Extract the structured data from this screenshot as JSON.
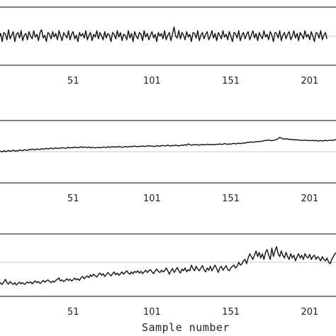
{
  "chart_data": [
    {
      "type": "line",
      "xlabel": "",
      "x_ticks": [
        "51",
        "101",
        "151",
        "201"
      ],
      "x_range": [
        1,
        215
      ],
      "baseline": 0,
      "ylim": [
        -1.6,
        1.6
      ],
      "series_style": {
        "color": "#111111",
        "reference_line_color": "#c8c8c8"
      },
      "samples": [
        0.05,
        -0.25,
        0.3,
        -0.1,
        0.15,
        -0.3,
        0.2,
        0.1,
        -0.2,
        0.35,
        -0.15,
        0.05,
        0.25,
        -0.3,
        0.1,
        0.2,
        -0.1,
        0.3,
        -0.25,
        0.05,
        0.15,
        -0.2,
        0.25,
        0.0,
        -0.15,
        0.3,
        -0.05,
        0.1,
        -0.25,
        0.2,
        0.35,
        -0.1,
        0.05,
        -0.3,
        0.2,
        0.1,
        -0.15,
        0.25,
        -0.05,
        0.15,
        -0.2,
        0.3,
        0.0,
        -0.25,
        0.2,
        0.05,
        -0.1,
        0.3,
        -0.2,
        0.1,
        0.25,
        -0.15,
        0.05,
        -0.3,
        0.2,
        0.0,
        0.15,
        -0.1,
        0.3,
        -0.2,
        0.05,
        0.2,
        -0.25,
        0.1,
        -0.05,
        0.3,
        -0.15,
        0.2,
        0.0,
        -0.2,
        0.25,
        -0.1,
        0.15,
        0.05,
        -0.3,
        0.2,
        0.1,
        -0.15,
        0.3,
        -0.05,
        0.2,
        -0.25,
        0.1,
        0.05,
        -0.2,
        0.3,
        -0.1,
        0.15,
        -0.3,
        0.25,
        0.0,
        -0.15,
        0.2,
        0.1,
        -0.25,
        0.3,
        -0.05,
        0.15,
        -0.2,
        0.05,
        0.25,
        -0.1,
        0.1,
        -0.3,
        0.2,
        0.0,
        0.15,
        -0.15,
        0.3,
        -0.2,
        0.05,
        0.2,
        -0.25,
        0.1,
        0.5,
        0.0,
        -0.1,
        0.3,
        -0.15,
        0.2,
        0.05,
        -0.2,
        0.25,
        -0.05,
        0.1,
        -0.3,
        0.2,
        0.15,
        -0.1,
        0.3,
        -0.25,
        0.05,
        0.2,
        -0.15,
        0.1,
        0.25,
        -0.2,
        0.0,
        0.3,
        -0.1,
        0.15,
        -0.25,
        0.2,
        0.05,
        -0.15,
        0.3,
        -0.05,
        0.1,
        -0.2,
        0.25,
        0.0,
        -0.3,
        0.2,
        0.15,
        -0.1,
        0.3,
        -0.25,
        0.05,
        0.2,
        -0.15,
        0.1,
        0.25,
        -0.2,
        0.05,
        0.3,
        -0.1,
        0.15,
        -0.25,
        0.2,
        0.0,
        -0.15,
        0.3,
        -0.05,
        0.1,
        -0.2,
        0.25,
        0.05,
        -0.3,
        0.2,
        0.15,
        -0.1,
        0.3,
        -0.25,
        0.05,
        0.2,
        -0.15,
        0.1,
        0.25,
        -0.2,
        0.0,
        0.3,
        -0.1,
        0.15,
        -0.25,
        0.2,
        0.05,
        -0.15,
        0.3,
        -0.05,
        0.1,
        -0.2,
        0.25,
        0.0,
        -0.3,
        0.2,
        0.15,
        -0.1,
        0.3,
        -0.2,
        0.05,
        0.2,
        -0.15
      ]
    },
    {
      "type": "line",
      "xlabel": "",
      "x_ticks": [
        "51",
        "101",
        "151",
        "201"
      ],
      "x_range": [
        1,
        215
      ],
      "baseline": 0,
      "ylim": [
        -1.2,
        1.2
      ],
      "series_style": {
        "color": "#111111",
        "reference_line_color": "#c8c8c8"
      },
      "samples": [
        0.0,
        0.03,
        -0.02,
        0.01,
        0.02,
        -0.01,
        0.04,
        0.0,
        0.02,
        0.05,
        0.01,
        0.03,
        0.06,
        0.02,
        0.04,
        0.03,
        0.07,
        0.05,
        0.04,
        0.08,
        0.06,
        0.05,
        0.09,
        0.07,
        0.1,
        0.08,
        0.07,
        0.11,
        0.09,
        0.08,
        0.12,
        0.1,
        0.11,
        0.13,
        0.1,
        0.12,
        0.14,
        0.11,
        0.13,
        0.15,
        0.12,
        0.14,
        0.13,
        0.16,
        0.14,
        0.13,
        0.15,
        0.17,
        0.14,
        0.16,
        0.15,
        0.18,
        0.16,
        0.15,
        0.17,
        0.19,
        0.16,
        0.18,
        0.17,
        0.16,
        0.18,
        0.15,
        0.17,
        0.16,
        0.14,
        0.16,
        0.17,
        0.15,
        0.16,
        0.18,
        0.17,
        0.16,
        0.19,
        0.17,
        0.18,
        0.2,
        0.17,
        0.19,
        0.18,
        0.2,
        0.19,
        0.17,
        0.18,
        0.2,
        0.19,
        0.18,
        0.21,
        0.19,
        0.2,
        0.22,
        0.2,
        0.19,
        0.21,
        0.2,
        0.22,
        0.21,
        0.2,
        0.22,
        0.23,
        0.21,
        0.22,
        0.2,
        0.21,
        0.23,
        0.22,
        0.21,
        0.23,
        0.24,
        0.22,
        0.23,
        0.25,
        0.23,
        0.22,
        0.24,
        0.23,
        0.25,
        0.24,
        0.22,
        0.24,
        0.26,
        0.24,
        0.27,
        0.25,
        0.3,
        0.27,
        0.25,
        0.26,
        0.28,
        0.26,
        0.27,
        0.25,
        0.27,
        0.28,
        0.26,
        0.27,
        0.29,
        0.27,
        0.28,
        0.26,
        0.28,
        0.27,
        0.29,
        0.28,
        0.3,
        0.28,
        0.29,
        0.31,
        0.3,
        0.28,
        0.3,
        0.29,
        0.31,
        0.32,
        0.3,
        0.31,
        0.33,
        0.31,
        0.32,
        0.34,
        0.33,
        0.35,
        0.37,
        0.36,
        0.38,
        0.36,
        0.37,
        0.39,
        0.38,
        0.4,
        0.39,
        0.41,
        0.42,
        0.44,
        0.43,
        0.45,
        0.44,
        0.42,
        0.43,
        0.45,
        0.47,
        0.5,
        0.55,
        0.52,
        0.5,
        0.48,
        0.5,
        0.49,
        0.47,
        0.48,
        0.46,
        0.47,
        0.45,
        0.46,
        0.44,
        0.45,
        0.43,
        0.44,
        0.45,
        0.43,
        0.44,
        0.42,
        0.43,
        0.44,
        0.42,
        0.43,
        0.41,
        0.42,
        0.43,
        0.41,
        0.42,
        0.44,
        0.42,
        0.43,
        0.45,
        0.43,
        0.44,
        0.46,
        0.45,
        0.47
      ]
    },
    {
      "type": "line",
      "xlabel": "Sample number",
      "x_ticks": [
        "51",
        "101",
        "151",
        "201"
      ],
      "x_range": [
        1,
        215
      ],
      "baseline": 0,
      "ylim": [
        -1.2,
        1.0
      ],
      "series_style": {
        "color": "#111111",
        "reference_line_color": "#c8c8c8"
      },
      "samples": [
        -0.75,
        -0.7,
        -0.8,
        -0.68,
        -0.74,
        -0.78,
        -0.7,
        -0.6,
        -0.72,
        -0.77,
        -0.68,
        -0.74,
        -0.78,
        -0.72,
        -0.8,
        -0.75,
        -0.7,
        -0.76,
        -0.72,
        -0.78,
        -0.74,
        -0.7,
        -0.73,
        -0.69,
        -0.76,
        -0.7,
        -0.66,
        -0.72,
        -0.68,
        -0.75,
        -0.7,
        -0.64,
        -0.7,
        -0.66,
        -0.62,
        -0.68,
        -0.72,
        -0.66,
        -0.7,
        -0.64,
        -0.6,
        -0.55,
        -0.66,
        -0.62,
        -0.68,
        -0.64,
        -0.58,
        -0.64,
        -0.6,
        -0.66,
        -0.62,
        -0.56,
        -0.62,
        -0.58,
        -0.64,
        -0.55,
        -0.5,
        -0.58,
        -0.52,
        -0.48,
        -0.54,
        -0.44,
        -0.5,
        -0.42,
        -0.48,
        -0.52,
        -0.44,
        -0.38,
        -0.46,
        -0.4,
        -0.5,
        -0.44,
        -0.36,
        -0.42,
        -0.48,
        -0.4,
        -0.34,
        -0.44,
        -0.38,
        -0.46,
        -0.4,
        -0.34,
        -0.42,
        -0.36,
        -0.3,
        -0.38,
        -0.42,
        -0.34,
        -0.4,
        -0.32,
        -0.36,
        -0.3,
        -0.38,
        -0.32,
        -0.4,
        -0.34,
        -0.28,
        -0.36,
        -0.3,
        -0.26,
        -0.34,
        -0.4,
        -0.3,
        -0.24,
        -0.32,
        -0.36,
        -0.28,
        -0.34,
        -0.3,
        -0.2,
        -0.3,
        -0.42,
        -0.3,
        -0.22,
        -0.36,
        -0.28,
        -0.18,
        -0.3,
        -0.38,
        -0.24,
        -0.3,
        -0.2,
        -0.34,
        -0.26,
        -0.3,
        -0.1,
        -0.22,
        -0.3,
        -0.14,
        -0.24,
        -0.3,
        -0.2,
        -0.12,
        -0.26,
        -0.34,
        -0.2,
        -0.28,
        -0.14,
        -0.3,
        -0.2,
        -0.1,
        -0.22,
        -0.36,
        -0.2,
        -0.14,
        -0.28,
        -0.2,
        -0.12,
        -0.26,
        -0.3,
        -0.2,
        -0.14,
        -0.1,
        -0.2,
        -0.14,
        0.0,
        -0.1,
        -0.06,
        0.05,
        0.1,
        -0.05,
        0.15,
        0.3,
        0.2,
        0.1,
        0.25,
        0.4,
        0.2,
        0.35,
        0.15,
        0.3,
        0.1,
        0.35,
        0.45,
        0.25,
        0.1,
        0.5,
        0.2,
        0.4,
        0.55,
        0.3,
        0.2,
        0.4,
        0.25,
        0.15,
        0.35,
        0.2,
        0.1,
        0.3,
        0.15,
        0.25,
        0.05,
        0.2,
        0.3,
        0.15,
        0.25,
        0.1,
        0.3,
        0.2,
        0.15,
        0.28,
        0.1,
        0.2,
        0.25,
        0.1,
        0.2,
        0.15,
        0.05,
        0.2,
        0.1,
        0.05,
        0.15,
        0.0,
        -0.05,
        0.1,
        0.2,
        0.3,
        0.35
      ]
    }
  ]
}
